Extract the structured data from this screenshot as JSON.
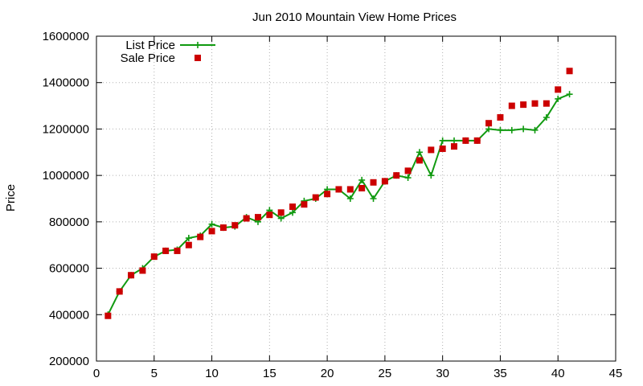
{
  "chart_data": {
    "type": "line",
    "title": "Jun 2010 Mountain View Home Prices",
    "xlabel": "",
    "ylabel": "Price",
    "xlim": [
      0,
      45
    ],
    "ylim": [
      200000,
      1600000
    ],
    "xticks": [
      0,
      5,
      10,
      15,
      20,
      25,
      30,
      35,
      40,
      45
    ],
    "yticks": [
      200000,
      400000,
      600000,
      800000,
      1000000,
      1200000,
      1400000,
      1600000
    ],
    "grid": true,
    "legend_position": "top-left",
    "series": [
      {
        "name": "List Price",
        "style": "line-with-plus-markers",
        "color": "#109a10",
        "x": [
          1,
          2,
          3,
          4,
          5,
          6,
          7,
          8,
          9,
          10,
          11,
          12,
          13,
          14,
          15,
          16,
          17,
          18,
          19,
          20,
          21,
          22,
          23,
          24,
          25,
          26,
          27,
          28,
          29,
          30,
          31,
          32,
          33,
          34,
          35,
          36,
          37,
          38,
          39,
          40,
          41
        ],
        "y": [
          400000,
          500000,
          570000,
          600000,
          650000,
          675000,
          680000,
          730000,
          740000,
          790000,
          775000,
          780000,
          820000,
          800000,
          850000,
          815000,
          840000,
          890000,
          900000,
          940000,
          940000,
          900000,
          980000,
          900000,
          975000,
          1000000,
          990000,
          1100000,
          1000000,
          1150000,
          1150000,
          1150000,
          1150000,
          1200000,
          1195000,
          1195000,
          1200000,
          1195000,
          1250000,
          1330000,
          1350000
        ]
      },
      {
        "name": "Sale Price",
        "style": "square-markers",
        "color": "#cc0000",
        "x": [
          1,
          2,
          3,
          4,
          5,
          6,
          7,
          8,
          9,
          10,
          11,
          12,
          13,
          14,
          15,
          16,
          17,
          18,
          19,
          20,
          21,
          22,
          23,
          24,
          25,
          26,
          27,
          28,
          29,
          30,
          31,
          32,
          33,
          34,
          35,
          36,
          37,
          38,
          39,
          40,
          41
        ],
        "y": [
          395000,
          500000,
          570000,
          590000,
          650000,
          675000,
          675000,
          700000,
          735000,
          760000,
          775000,
          785000,
          815000,
          820000,
          830000,
          840000,
          865000,
          875000,
          905000,
          920000,
          940000,
          940000,
          945000,
          970000,
          975000,
          1000000,
          1020000,
          1065000,
          1110000,
          1115000,
          1125000,
          1150000,
          1150000,
          1225000,
          1250000,
          1300000,
          1305000,
          1310000,
          1310000,
          1370000,
          1450000
        ]
      }
    ]
  }
}
